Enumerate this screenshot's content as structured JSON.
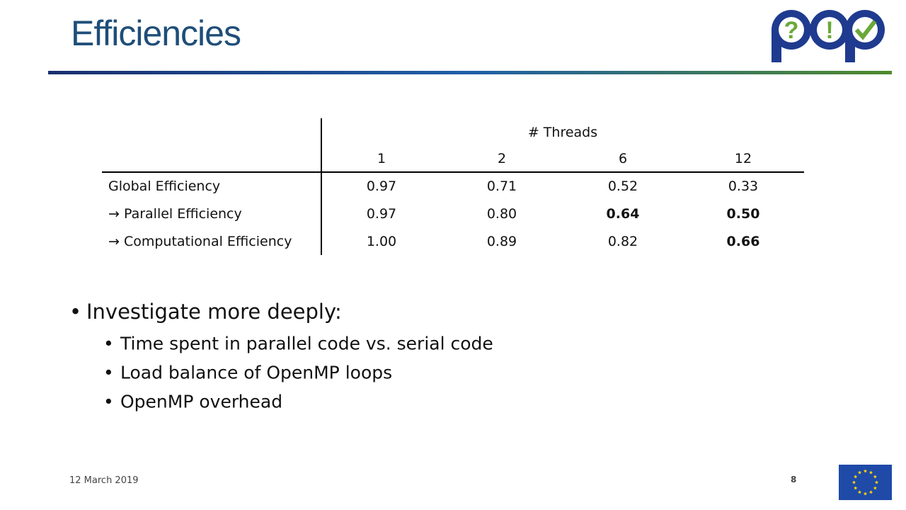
{
  "header": {
    "title": "Efficiencies"
  },
  "logo": {
    "symbols": [
      "?",
      "!"
    ]
  },
  "table": {
    "group_header": "# Threads",
    "columns": [
      "1",
      "2",
      "6",
      "12"
    ],
    "rows": [
      {
        "label": "Global Efficiency",
        "cells": [
          {
            "text": "0.97",
            "bold": false
          },
          {
            "text": "0.71",
            "bold": false
          },
          {
            "text": "0.52",
            "bold": false
          },
          {
            "text": "0.33",
            "bold": false
          }
        ]
      },
      {
        "label": "→ Parallel Efficiency",
        "cells": [
          {
            "text": "0.97",
            "bold": false
          },
          {
            "text": "0.80",
            "bold": false
          },
          {
            "text": "0.64",
            "bold": true
          },
          {
            "text": "0.50",
            "bold": true
          }
        ]
      },
      {
        "label": "→ Computational Efficiency",
        "cells": [
          {
            "text": "1.00",
            "bold": false
          },
          {
            "text": "0.89",
            "bold": false
          },
          {
            "text": "0.82",
            "bold": false
          },
          {
            "text": "0.66",
            "bold": true
          }
        ]
      }
    ]
  },
  "bullets": {
    "text": "Investigate more deeply:",
    "sub": [
      "Time spent in parallel code vs. serial code",
      "Load balance of OpenMP loops",
      "OpenMP overhead"
    ]
  },
  "footer": {
    "date": "12 March 2019",
    "page": "8"
  }
}
